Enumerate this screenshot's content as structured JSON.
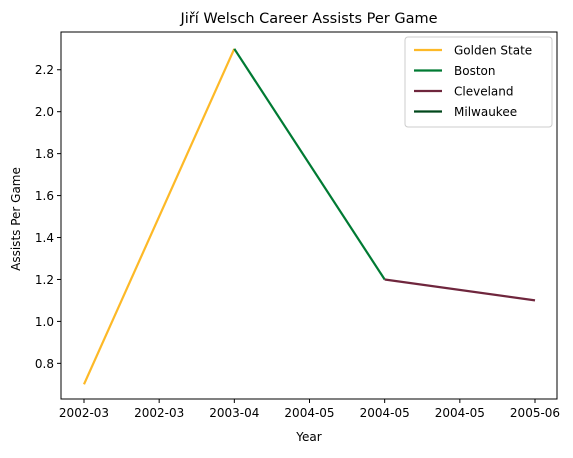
{
  "chart_data": {
    "type": "line",
    "title": "Jiří Welsch Career Assists Per Game",
    "xlabel": "Year",
    "ylabel": "Assists Per Game",
    "x_tick_labels": [
      "2002-03",
      "2002-03",
      "2003-04",
      "2004-05",
      "2004-05",
      "2004-05",
      "2005-06"
    ],
    "y_ticks": [
      0.8,
      1.0,
      1.2,
      1.4,
      1.6,
      1.8,
      2.0,
      2.2
    ],
    "y_tick_labels": [
      "0.8",
      "1.0",
      "1.2",
      "1.4",
      "1.6",
      "1.8",
      "2.0",
      "2.2"
    ],
    "x_categories": [
      "2002-03",
      "2003-04",
      "2004-05",
      "2005-06"
    ],
    "ylim": [
      0.63,
      2.38
    ],
    "grid": false,
    "legend_position": "top-right",
    "series": [
      {
        "name": "Golden State",
        "color": "#FDB927",
        "x": [
          "2002-03",
          "2003-04"
        ],
        "y": [
          0.7,
          2.3
        ]
      },
      {
        "name": "Boston",
        "color": "#007A33",
        "x": [
          "2003-04",
          "2004-05"
        ],
        "y": [
          2.3,
          1.2
        ]
      },
      {
        "name": "Cleveland",
        "color": "#6F263D",
        "x": [
          "2004-05",
          "2005-06"
        ],
        "y": [
          1.2,
          1.1
        ]
      },
      {
        "name": "Milwaukee",
        "color": "#00471B",
        "x": [],
        "y": []
      }
    ]
  }
}
